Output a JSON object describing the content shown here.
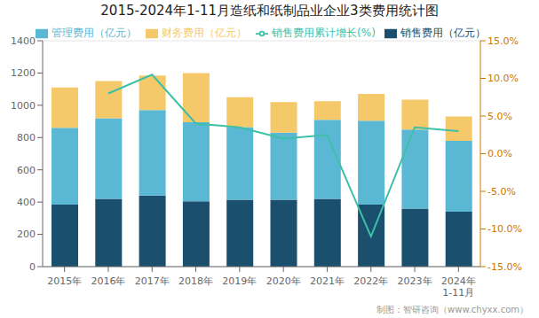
{
  "chart_data": {
    "type": "bar",
    "title": "2015-2024年1-11月造纸和纸制品业企业3类费用统计图",
    "categories": [
      "2015年",
      "2016年",
      "2017年",
      "2018年",
      "2019年",
      "2020年",
      "2021年",
      "2022年",
      "2023年",
      "2024年\n1-11月"
    ],
    "series": [
      {
        "name": "销售费用（亿元）",
        "type": "bar",
        "color": "#1a4f6e",
        "values": [
          385,
          420,
          440,
          405,
          415,
          415,
          420,
          385,
          360,
          340
        ]
      },
      {
        "name": "管理费用（亿元）",
        "type": "bar",
        "color": "#5bb8d4",
        "values": [
          475,
          500,
          530,
          490,
          450,
          415,
          490,
          520,
          490,
          440
        ]
      },
      {
        "name": "财务费用（亿元）",
        "type": "bar",
        "color": "#f5c96a",
        "values": [
          250,
          230,
          215,
          305,
          185,
          190,
          115,
          165,
          185,
          150
        ]
      },
      {
        "name": "销售费用累计增长(%)",
        "type": "line",
        "axis": "y2",
        "color": "#3dbfa8",
        "values": [
          null,
          8.0,
          10.5,
          4.0,
          3.5,
          2.0,
          2.5,
          -11.0,
          3.5,
          3.0
        ]
      }
    ],
    "stacked": true,
    "grid": true,
    "legend": "top",
    "ylim": [
      0,
      1400
    ],
    "yticks": [
      0,
      200,
      400,
      600,
      800,
      1000,
      1200,
      1400
    ],
    "y2lim": [
      -15,
      15
    ],
    "y2ticks": [
      {
        "value": -15,
        "label": "-15.0%"
      },
      {
        "value": -10,
        "label": "-10.0%"
      },
      {
        "value": -5,
        "label": "-5.0%"
      },
      {
        "value": 0,
        "label": "0.0%"
      },
      {
        "value": 5,
        "label": "5.0%"
      },
      {
        "value": 10,
        "label": "10.0%"
      },
      {
        "value": 15,
        "label": "15.0%"
      }
    ],
    "annotations": [
      "制图：智研咨询（www.chyxx.com）"
    ]
  }
}
